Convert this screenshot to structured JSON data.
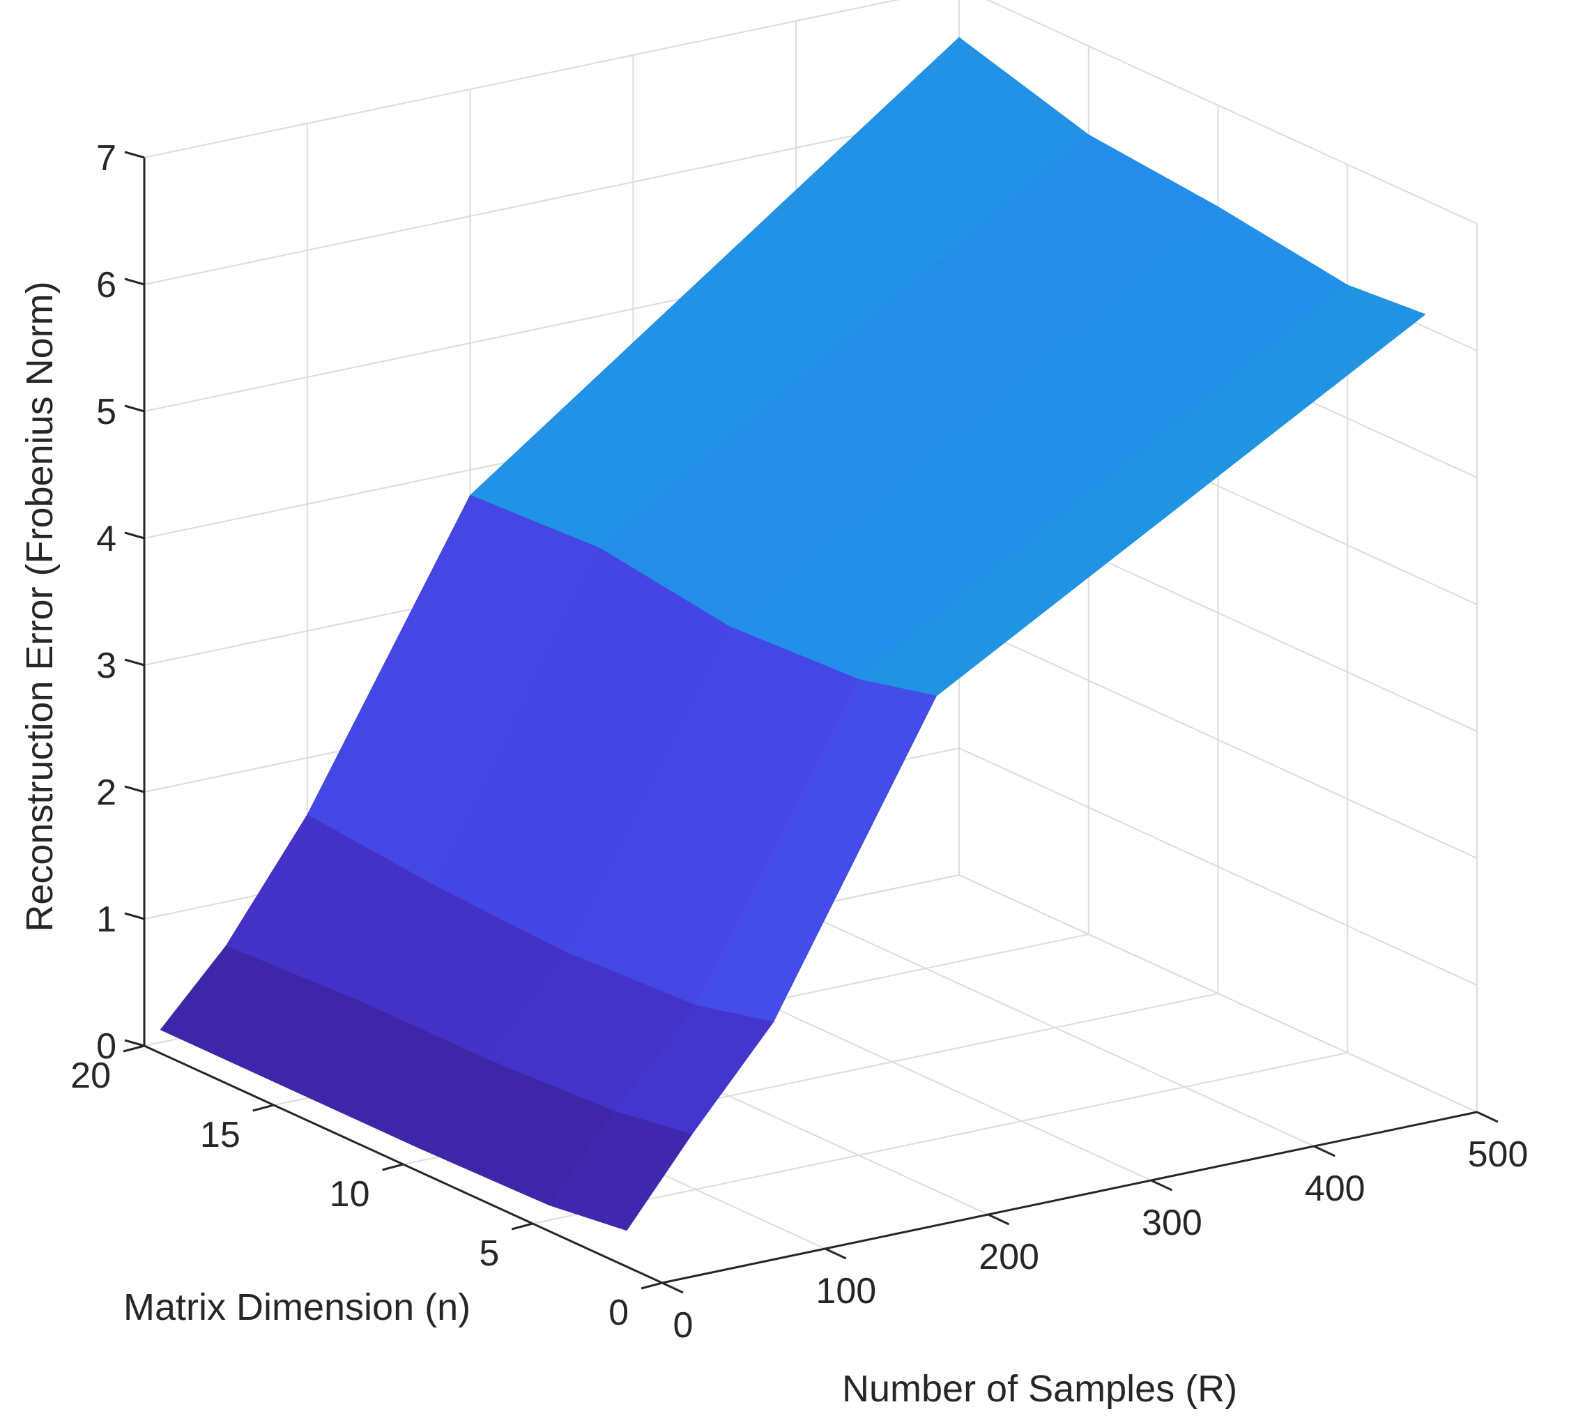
{
  "chart_data": {
    "type": "surface",
    "title": "",
    "xlabel": "Matrix Dimension (n)",
    "ylabel": "Number of Samples (R)",
    "zlabel": "Reconstruction Error (Frobenius Norm)",
    "x_ticks": [
      0,
      5,
      10,
      15,
      20
    ],
    "y_ticks": [
      0,
      100,
      200,
      300,
      400,
      500
    ],
    "z_ticks": [
      0,
      1,
      2,
      3,
      4,
      5,
      6,
      7
    ],
    "xlim": [
      0,
      20
    ],
    "ylim": [
      0,
      500
    ],
    "zlim": [
      0,
      7
    ],
    "grid": true,
    "colormap": "parula",
    "x": [
      2,
      5,
      10,
      15,
      20
    ],
    "y": [
      10,
      50,
      100,
      200,
      500
    ],
    "z": [
      [
        0.2,
        0.12,
        0.1,
        0.1,
        0.1
      ],
      [
        0.85,
        0.75,
        0.7,
        0.7,
        0.65
      ],
      [
        1.6,
        1.45,
        1.4,
        1.45,
        1.55
      ],
      [
        3.9,
        3.75,
        3.7,
        3.85,
        3.8
      ],
      [
        6.1,
        6.05,
        6.2,
        6.3,
        6.6
      ]
    ]
  }
}
